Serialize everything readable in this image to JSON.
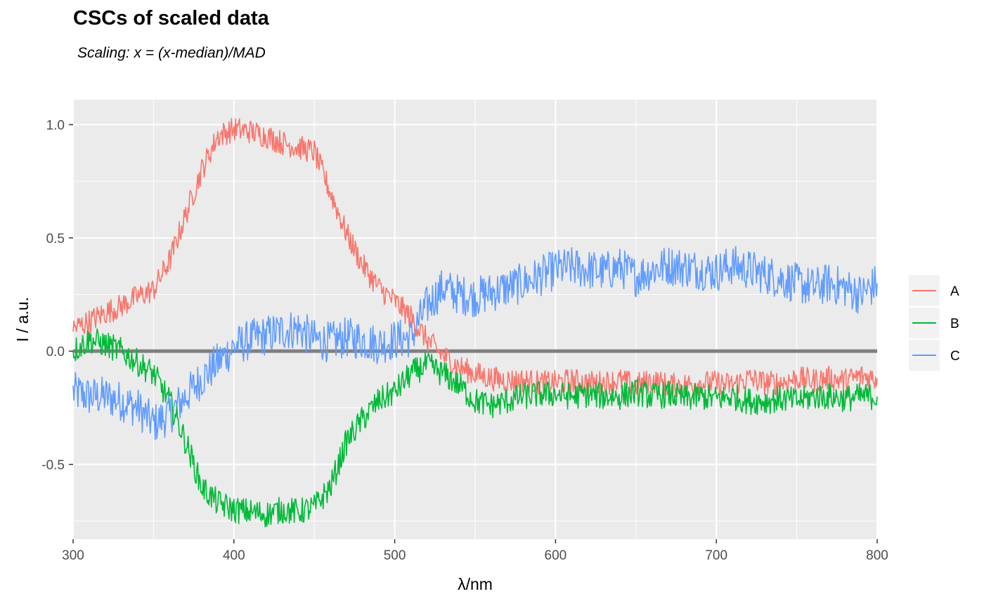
{
  "chart_data": {
    "type": "line",
    "title": "CSCs of scaled data",
    "subtitle": "Scaling: x = (x-median)/MAD",
    "xlabel": "λ/nm",
    "ylabel": "I / a.u.",
    "xlim": [
      300,
      800
    ],
    "ylim": [
      -0.83,
      1.11
    ],
    "x_ticks": [
      300,
      400,
      500,
      600,
      700,
      800
    ],
    "x_tick_labels": [
      "300",
      "400",
      "500",
      "600",
      "700",
      "800"
    ],
    "y_ticks": [
      -0.5,
      0.0,
      0.5,
      1.0
    ],
    "y_tick_labels": [
      "-0.5",
      "0.0",
      "0.5",
      "1.0"
    ],
    "grid": true,
    "reference_line": 0.0,
    "legend": {
      "position": "right",
      "entries": [
        "A",
        "B",
        "C"
      ]
    },
    "colors": {
      "A": "#f8766d",
      "B": "#00ba38",
      "C": "#619cff",
      "panel": "#ebebeb",
      "grid": "#ffffff",
      "reference_line": "#7f7f7f"
    },
    "x": [
      300,
      310,
      320,
      330,
      340,
      350,
      360,
      370,
      380,
      390,
      400,
      410,
      420,
      430,
      440,
      450,
      460,
      470,
      480,
      490,
      500,
      510,
      520,
      530,
      540,
      550,
      560,
      570,
      580,
      590,
      600,
      610,
      620,
      630,
      640,
      650,
      660,
      670,
      680,
      690,
      700,
      710,
      720,
      730,
      740,
      750,
      760,
      770,
      780,
      790,
      800
    ],
    "series": [
      {
        "name": "A",
        "values": [
          0.1,
          0.13,
          0.17,
          0.2,
          0.24,
          0.27,
          0.4,
          0.6,
          0.8,
          0.95,
          0.98,
          0.97,
          0.95,
          0.92,
          0.9,
          0.88,
          0.7,
          0.52,
          0.38,
          0.28,
          0.22,
          0.15,
          0.05,
          -0.02,
          -0.07,
          -0.1,
          -0.12,
          -0.13,
          -0.13,
          -0.14,
          -0.14,
          -0.13,
          -0.14,
          -0.14,
          -0.13,
          -0.15,
          -0.13,
          -0.15,
          -0.15,
          -0.14,
          -0.14,
          -0.15,
          -0.12,
          -0.14,
          -0.14,
          -0.12,
          -0.13,
          -0.12,
          -0.13,
          -0.11,
          -0.12
        ]
      },
      {
        "name": "B",
        "values": [
          0.0,
          0.05,
          0.03,
          0.0,
          -0.05,
          -0.1,
          -0.22,
          -0.4,
          -0.6,
          -0.67,
          -0.7,
          -0.71,
          -0.72,
          -0.7,
          -0.71,
          -0.69,
          -0.6,
          -0.4,
          -0.3,
          -0.22,
          -0.18,
          -0.1,
          -0.06,
          -0.1,
          -0.15,
          -0.22,
          -0.24,
          -0.22,
          -0.2,
          -0.19,
          -0.19,
          -0.2,
          -0.19,
          -0.2,
          -0.2,
          -0.18,
          -0.2,
          -0.19,
          -0.21,
          -0.2,
          -0.21,
          -0.2,
          -0.22,
          -0.22,
          -0.21,
          -0.22,
          -0.2,
          -0.2,
          -0.21,
          -0.2,
          -0.2
        ]
      },
      {
        "name": "C",
        "values": [
          -0.18,
          -0.2,
          -0.2,
          -0.22,
          -0.25,
          -0.32,
          -0.28,
          -0.2,
          -0.12,
          -0.05,
          0.02,
          0.05,
          0.07,
          0.09,
          0.1,
          0.05,
          0.04,
          0.06,
          0.05,
          0.03,
          0.05,
          0.06,
          0.2,
          0.28,
          0.25,
          0.24,
          0.26,
          0.28,
          0.3,
          0.33,
          0.36,
          0.37,
          0.36,
          0.35,
          0.37,
          0.33,
          0.36,
          0.38,
          0.37,
          0.36,
          0.35,
          0.38,
          0.36,
          0.34,
          0.32,
          0.3,
          0.28,
          0.3,
          0.28,
          0.25,
          0.3
        ]
      }
    ]
  }
}
